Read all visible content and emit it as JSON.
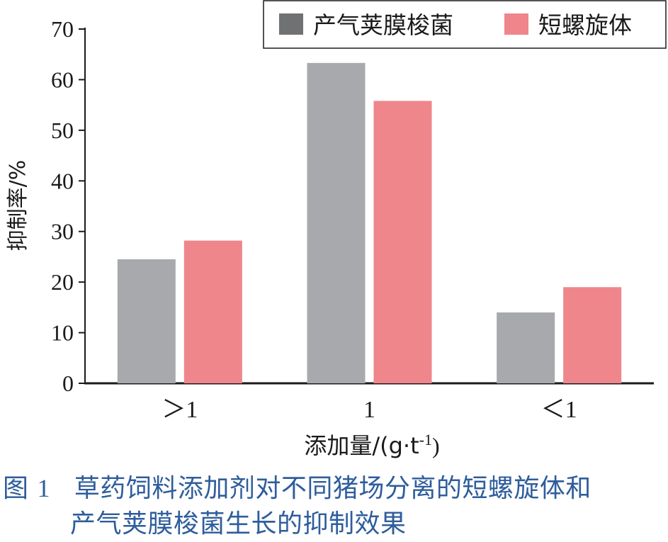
{
  "chart_data": {
    "type": "bar",
    "categories": [
      "＞1",
      "1",
      "＜1"
    ],
    "series": [
      {
        "name": "产气荚膜梭菌",
        "color": "#a7a9ac",
        "values": [
          24.5,
          63.3,
          14.0
        ]
      },
      {
        "name": "短螺旋体",
        "color": "#ee868c",
        "values": [
          28.2,
          55.8,
          19.0
        ]
      }
    ],
    "ylabel": "抑制率/%",
    "xlabel_main": "添加量/(g·t",
    "xlabel_sup": "-1",
    "xlabel_end": ")",
    "ylim": [
      0,
      70
    ],
    "yticks": [
      0,
      10,
      20,
      30,
      40,
      50,
      60,
      70
    ],
    "legend_position": "top-right",
    "grid": false
  },
  "caption": {
    "figure_label": "图 ",
    "figure_number": "1",
    "line1": "草药饲料添加剂对不同猪场分离的短螺旋体和",
    "line2": "产气荚膜梭菌生长的抑制效果"
  }
}
